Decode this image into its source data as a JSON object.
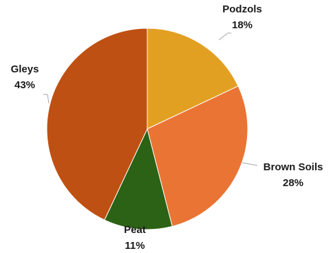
{
  "chart_data": {
    "type": "pie",
    "title": "",
    "start_angle_deg": 0,
    "direction": "clockwise",
    "legend": "none",
    "slices": [
      {
        "label": "Podzols",
        "value": 18,
        "display": "18%",
        "color": "#e2a023"
      },
      {
        "label": "Brown Soils",
        "value": 28,
        "display": "28%",
        "color": "#ea7434"
      },
      {
        "label": "Peat",
        "value": 11,
        "display": "11%",
        "color": "#2b6215"
      },
      {
        "label": "Gleys",
        "value": 43,
        "display": "43%",
        "color": "#bf5013"
      }
    ]
  }
}
